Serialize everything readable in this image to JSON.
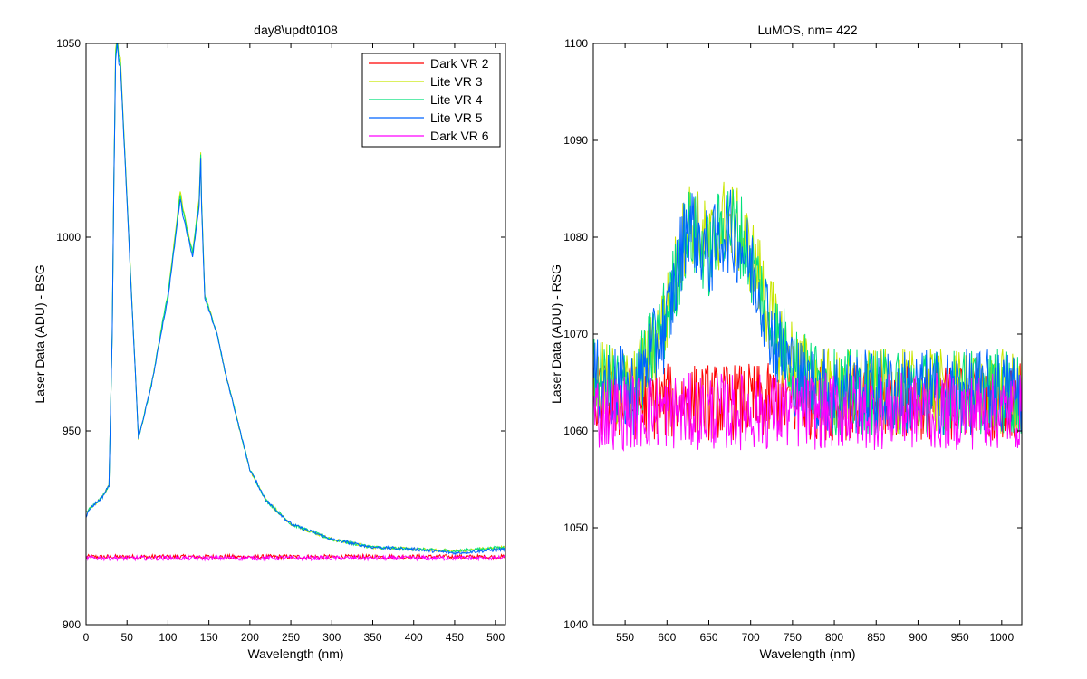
{
  "figure": {
    "background": "#ffffff"
  },
  "chart_data": [
    {
      "type": "line",
      "title": "day8\\updt0108",
      "xlabel": "Wavelength (nm)",
      "ylabel": "Laser Data (ADU) - BSG",
      "xlim": [
        0,
        512
      ],
      "ylim": [
        900,
        1050
      ],
      "xticks": [
        0,
        50,
        100,
        150,
        200,
        250,
        300,
        350,
        400,
        450,
        500
      ],
      "yticks": [
        900,
        950,
        1000,
        1050
      ],
      "grid": false,
      "legend": {
        "position": "top-right"
      },
      "series": [
        {
          "name": "Dark VR 2",
          "color": "#ff0000",
          "noise": 0.6,
          "x": [
            0,
            512
          ],
          "y": [
            917.5,
            917.5
          ]
        },
        {
          "name": "Lite VR 3",
          "color": "#c8e600",
          "noise": 0.4,
          "x": [
            0,
            5,
            20,
            28,
            32,
            34,
            36,
            38,
            40,
            42,
            64,
            80,
            95,
            100,
            115,
            118,
            130,
            138,
            140,
            141,
            145,
            160,
            170,
            200,
            220,
            250,
            300,
            350,
            400,
            450,
            512
          ],
          "y": [
            929,
            930,
            933,
            936,
            975,
            1015,
            1048,
            1052,
            1047,
            1046,
            948,
            962,
            980,
            985,
            1012,
            1008,
            996,
            1010,
            1022,
            1010,
            985,
            975,
            965,
            940,
            932,
            926,
            922,
            920,
            919.5,
            919,
            920
          ]
        },
        {
          "name": "Lite VR 4",
          "color": "#00e07a",
          "noise": 0.4,
          "x": [
            0,
            5,
            20,
            28,
            32,
            34,
            36,
            38,
            40,
            42,
            64,
            80,
            95,
            100,
            115,
            118,
            130,
            138,
            140,
            141,
            145,
            160,
            170,
            200,
            220,
            250,
            300,
            350,
            400,
            450,
            512
          ],
          "y": [
            929,
            930,
            933,
            936,
            975,
            1014,
            1047,
            1051,
            1046,
            1045,
            948,
            962,
            980,
            985,
            1011,
            1007,
            996,
            1009,
            1021,
            1009,
            985,
            975,
            965,
            940,
            932,
            926,
            922,
            920,
            919.5,
            919,
            920
          ]
        },
        {
          "name": "Lite VR 5",
          "color": "#0064ff",
          "noise": 0.4,
          "x": [
            0,
            5,
            20,
            28,
            32,
            34,
            36,
            38,
            40,
            42,
            64,
            80,
            95,
            100,
            115,
            118,
            130,
            138,
            140,
            141,
            145,
            160,
            170,
            200,
            220,
            250,
            300,
            350,
            400,
            450,
            512
          ],
          "y": [
            928,
            930,
            933,
            936,
            975,
            1014,
            1046,
            1050,
            1045,
            1044,
            948,
            962,
            979,
            984,
            1010,
            1006,
            995,
            1008,
            1020,
            1008,
            984,
            975,
            965,
            940,
            932,
            926,
            922,
            920,
            919.5,
            918.5,
            919.5
          ]
        },
        {
          "name": "Dark VR 6",
          "color": "#ff00ff",
          "noise": 0.6,
          "x": [
            0,
            512
          ],
          "y": [
            917.2,
            917.2
          ]
        }
      ]
    },
    {
      "type": "line",
      "title": "LuMOS, nm= 422",
      "xlabel": "Wavelength (nm)",
      "ylabel": "Laser Data (ADU) - RSG",
      "xlim": [
        512,
        1024
      ],
      "ylim": [
        1040,
        1100
      ],
      "xticks": [
        550,
        600,
        650,
        700,
        750,
        800,
        850,
        900,
        950,
        1000
      ],
      "yticks": [
        1040,
        1050,
        1060,
        1070,
        1080,
        1090,
        1100
      ],
      "grid": false,
      "series": [
        {
          "name": "Dark VR 2",
          "color": "#ff0000",
          "noise": 4,
          "x": [
            512,
            1024
          ],
          "y": [
            1063,
            1063
          ]
        },
        {
          "name": "Lite VR 3",
          "color": "#c8e600",
          "noise": 4.5,
          "x": [
            512,
            560,
            600,
            625,
            650,
            670,
            690,
            710,
            730,
            760,
            800,
            1024
          ],
          "y": [
            1065,
            1064,
            1072,
            1082,
            1079,
            1082,
            1080,
            1076,
            1070,
            1066,
            1064,
            1064
          ]
        },
        {
          "name": "Lite VR 4",
          "color": "#00e07a",
          "noise": 4.5,
          "x": [
            512,
            560,
            600,
            625,
            650,
            670,
            690,
            710,
            730,
            760,
            800,
            1024
          ],
          "y": [
            1065,
            1064,
            1072,
            1081,
            1078,
            1082,
            1080,
            1075,
            1070,
            1066,
            1064,
            1064
          ]
        },
        {
          "name": "Lite VR 5",
          "color": "#0064ff",
          "noise": 4.5,
          "x": [
            512,
            560,
            600,
            625,
            650,
            670,
            690,
            710,
            730,
            760,
            800,
            1024
          ],
          "y": [
            1065,
            1064,
            1071,
            1082,
            1078,
            1081,
            1079,
            1075,
            1069,
            1065,
            1064,
            1064
          ]
        },
        {
          "name": "Dark VR 6",
          "color": "#ff00ff",
          "noise": 4,
          "x": [
            512,
            1024
          ],
          "y": [
            1062,
            1062
          ]
        }
      ]
    }
  ]
}
